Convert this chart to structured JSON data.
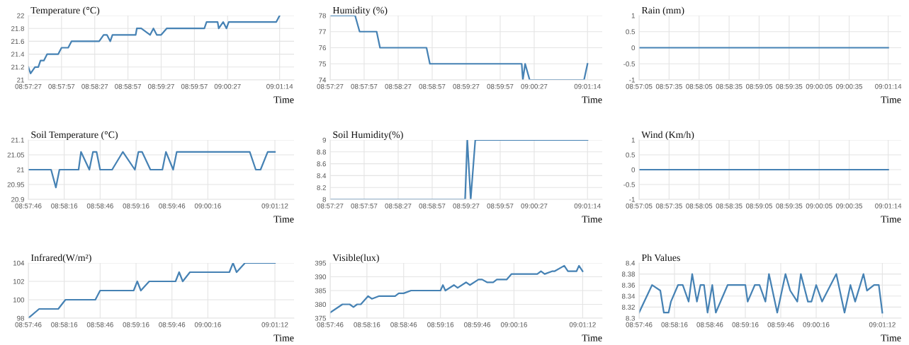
{
  "chart_data": [
    {
      "type": "line",
      "title": "Temperature (°C)",
      "xlabel": "Time",
      "grid": true,
      "x": [
        8.9575,
        8.95806,
        8.95917,
        8.96,
        8.96056,
        8.96139,
        8.96222,
        8.965,
        8.96583,
        8.9675,
        8.96833,
        8.97528,
        8.97639,
        8.97722,
        8.97806,
        8.97861,
        8.98444,
        8.98472,
        8.98583,
        8.98806,
        8.98889,
        8.98972,
        8.99083,
        8.99222,
        9.00167,
        9.00222,
        9.005,
        9.00528,
        9.00639,
        9.00722,
        9.00778,
        9.01972,
        9.02056
      ],
      "series": [
        {
          "color": "#4682b4",
          "values": [
            21.2,
            21.1,
            21.2,
            21.2,
            21.3,
            21.3,
            21.4,
            21.4,
            21.5,
            21.5,
            21.6,
            21.6,
            21.7,
            21.7,
            21.6,
            21.7,
            21.7,
            21.8,
            21.8,
            21.7,
            21.8,
            21.7,
            21.7,
            21.8,
            21.8,
            21.9,
            21.9,
            21.8,
            21.9,
            21.8,
            21.9,
            21.9,
            22
          ]
        }
      ],
      "xlim": [
        8.9575,
        9.02417
      ],
      "ylim": [
        21,
        22
      ],
      "yticks": [
        21,
        21.2,
        21.4,
        21.6,
        21.8,
        22
      ],
      "xticks": [
        {
          "value": 8.9575,
          "label": "08:57:27"
        },
        {
          "value": 8.96583,
          "label": "08:57:57"
        },
        {
          "value": 8.97417,
          "label": "08:58:27"
        },
        {
          "value": 8.9825,
          "label": "08:58:57"
        },
        {
          "value": 8.99083,
          "label": "08:59:27"
        },
        {
          "value": 8.99917,
          "label": "08:59:57"
        },
        {
          "value": 9.0075,
          "label": "09:00:27"
        },
        {
          "value": 9.02056,
          "label": "09:01:14"
        }
      ]
    },
    {
      "type": "line",
      "title": "Humidity (%)",
      "xlabel": "Time",
      "grid": true,
      "x": [
        8.9575,
        8.96361,
        8.96472,
        8.96889,
        8.96972,
        8.98111,
        8.98194,
        9.00444,
        9.00472,
        9.00528,
        9.00639,
        9.01972,
        9.02056
      ],
      "series": [
        {
          "color": "#4682b4",
          "values": [
            78,
            78,
            77,
            77,
            76,
            76,
            75,
            75,
            74,
            75,
            74,
            74,
            75
          ]
        }
      ],
      "xlim": [
        8.9575,
        9.02417
      ],
      "ylim": [
        74,
        78
      ],
      "yticks": [
        74,
        75,
        76,
        77,
        78
      ],
      "xticks": [
        {
          "value": 8.9575,
          "label": "08:57:27"
        },
        {
          "value": 8.96583,
          "label": "08:57:57"
        },
        {
          "value": 8.97417,
          "label": "08:58:27"
        },
        {
          "value": 8.9825,
          "label": "08:58:57"
        },
        {
          "value": 8.99083,
          "label": "08:59:27"
        },
        {
          "value": 8.99917,
          "label": "08:59:57"
        },
        {
          "value": 9.0075,
          "label": "09:00:27"
        },
        {
          "value": 9.02056,
          "label": "09:01:14"
        }
      ]
    },
    {
      "type": "line",
      "title": "Rain (mm)",
      "xlabel": "Time",
      "grid": true,
      "x": [
        8.95139,
        9.02056
      ],
      "series": [
        {
          "color": "#4682b4",
          "values": [
            0,
            0
          ]
        }
      ],
      "xlim": [
        8.95139,
        9.02417
      ],
      "ylim": [
        -1,
        1
      ],
      "yticks": [
        -1,
        -0.5,
        0,
        0.5,
        1
      ],
      "xticks": [
        {
          "value": 8.95139,
          "label": "08:57:05"
        },
        {
          "value": 8.95972,
          "label": "08:57:35"
        },
        {
          "value": 8.96806,
          "label": "08:58:05"
        },
        {
          "value": 8.97639,
          "label": "08:58:35"
        },
        {
          "value": 8.98472,
          "label": "08:59:05"
        },
        {
          "value": 8.99306,
          "label": "08:59:35"
        },
        {
          "value": 9.00139,
          "label": "09:00:05"
        },
        {
          "value": 9.00972,
          "label": "09:00:35"
        },
        {
          "value": 9.02056,
          "label": "09:01:14"
        }
      ]
    },
    {
      "type": "line",
      "title": "Soil Temperature (°C)",
      "xlabel": "Time",
      "grid": true,
      "x": [
        8.96278,
        8.96806,
        8.96917,
        8.97,
        8.97444,
        8.975,
        8.97694,
        8.97778,
        8.97861,
        8.97944,
        8.98222,
        8.98472,
        8.9875,
        8.98833,
        8.98917,
        8.99111,
        8.99389,
        8.99472,
        8.99639,
        8.99722,
        9.01417,
        9.01556,
        9.01667,
        9.01833,
        9.02
      ],
      "series": [
        {
          "color": "#4682b4",
          "values": [
            21,
            21,
            20.94,
            21,
            21,
            21.06,
            21,
            21.06,
            21.06,
            21,
            21,
            21.06,
            21,
            21.06,
            21.06,
            21,
            21,
            21.06,
            21,
            21.06,
            21.06,
            21,
            21,
            21.06,
            21.06
          ]
        }
      ],
      "xlim": [
        8.96278,
        9.02444
      ],
      "ylim": [
        20.9,
        21.1
      ],
      "yticks": [
        20.9,
        20.95,
        21,
        21.05,
        21.1
      ],
      "xticks": [
        {
          "value": 8.96278,
          "label": "08:57:46"
        },
        {
          "value": 8.97111,
          "label": "08:58:16"
        },
        {
          "value": 8.97944,
          "label": "08:58:46"
        },
        {
          "value": 8.98778,
          "label": "08:59:16"
        },
        {
          "value": 8.99611,
          "label": "08:59:46"
        },
        {
          "value": 9.00444,
          "label": "09:00:16"
        },
        {
          "value": 9.02,
          "label": "09:01:12"
        }
      ]
    },
    {
      "type": "line",
      "title": "Soil Humidity(%)",
      "xlabel": "Time",
      "grid": true,
      "x": [
        8.9575,
        8.99056,
        8.99111,
        8.99194,
        8.99306,
        9.02056
      ],
      "series": [
        {
          "color": "#4682b4",
          "values": [
            8,
            8,
            9,
            8,
            9,
            9
          ]
        }
      ],
      "xlim": [
        8.9575,
        9.02417
      ],
      "ylim": [
        8,
        9
      ],
      "yticks": [
        8,
        8.2,
        8.4,
        8.6,
        8.8,
        9
      ],
      "xticks": [
        {
          "value": 8.9575,
          "label": "08:57:27"
        },
        {
          "value": 8.96583,
          "label": "08:57:57"
        },
        {
          "value": 8.97417,
          "label": "08:58:27"
        },
        {
          "value": 8.9825,
          "label": "08:58:57"
        },
        {
          "value": 8.99083,
          "label": "08:59:27"
        },
        {
          "value": 8.99917,
          "label": "08:59:57"
        },
        {
          "value": 9.0075,
          "label": "09:00:27"
        },
        {
          "value": 9.02056,
          "label": "09:01:14"
        }
      ]
    },
    {
      "type": "line",
      "title": "Wind (Km/h)",
      "xlabel": "Time",
      "grid": true,
      "x": [
        8.95139,
        9.02056
      ],
      "series": [
        {
          "color": "#4682b4",
          "values": [
            0,
            0
          ]
        }
      ],
      "xlim": [
        8.95139,
        9.02417
      ],
      "ylim": [
        -1,
        1
      ],
      "yticks": [
        -1,
        -0.5,
        0,
        0.5,
        1
      ],
      "xticks": [
        {
          "value": 8.95139,
          "label": "08:57:05"
        },
        {
          "value": 8.95972,
          "label": "08:57:35"
        },
        {
          "value": 8.96806,
          "label": "08:58:05"
        },
        {
          "value": 8.97639,
          "label": "08:58:35"
        },
        {
          "value": 8.98472,
          "label": "08:59:05"
        },
        {
          "value": 8.99306,
          "label": "08:59:35"
        },
        {
          "value": 9.00139,
          "label": "09:00:05"
        },
        {
          "value": 9.00972,
          "label": "09:00:35"
        },
        {
          "value": 9.02056,
          "label": "09:01:14"
        }
      ]
    },
    {
      "type": "line",
      "title": "Infrared(W/m²)",
      "xlabel": "Time",
      "grid": true,
      "x": [
        8.96278,
        8.96528,
        8.96972,
        8.97139,
        8.97833,
        8.97944,
        8.98722,
        8.98806,
        8.98889,
        8.99083,
        8.99694,
        8.99778,
        8.99861,
        9.00028,
        9.00944,
        9.01028,
        9.01111,
        9.01306,
        9.02
      ],
      "series": [
        {
          "color": "#4682b4",
          "values": [
            98,
            99,
            99,
            100,
            100,
            101,
            101,
            102,
            101,
            102,
            102,
            103,
            102,
            103,
            103,
            104,
            103,
            104,
            104
          ]
        }
      ],
      "xlim": [
        8.96278,
        9.02444
      ],
      "ylim": [
        98,
        104
      ],
      "yticks": [
        98,
        100,
        102,
        104
      ],
      "xticks": [
        {
          "value": 8.96278,
          "label": "08:57:46"
        },
        {
          "value": 8.97111,
          "label": "08:58:16"
        },
        {
          "value": 8.97944,
          "label": "08:58:46"
        },
        {
          "value": 8.98778,
          "label": "08:59:16"
        },
        {
          "value": 8.99611,
          "label": "08:59:46"
        },
        {
          "value": 9.00444,
          "label": "09:00:16"
        },
        {
          "value": 9.02,
          "label": "09:01:12"
        }
      ]
    },
    {
      "type": "line",
      "title": "Visible(lux)",
      "xlabel": "Time",
      "grid": true,
      "x": [
        8.96278,
        8.96556,
        8.96722,
        8.96806,
        8.96889,
        8.96972,
        8.97139,
        8.97222,
        8.97389,
        8.9775,
        8.97833,
        8.97944,
        8.98111,
        8.98778,
        8.98833,
        8.98889,
        8.99083,
        8.99167,
        8.99361,
        8.99444,
        8.99639,
        8.99722,
        8.99833,
        8.99972,
        9.00056,
        9.00278,
        9.00389,
        9.00972,
        9.01056,
        9.01139,
        9.01306,
        9.01361,
        9.01583,
        9.01667,
        9.01861,
        9.01917,
        9.02
      ],
      "series": [
        {
          "color": "#4682b4",
          "values": [
            377,
            380,
            380,
            379,
            380,
            380,
            383,
            382,
            383,
            383,
            384,
            384,
            385,
            385,
            387,
            385,
            387,
            386,
            388,
            387,
            389,
            389,
            388,
            388,
            389,
            389,
            391,
            391,
            392,
            391,
            392,
            392,
            394,
            392,
            392,
            394,
            392
          ]
        }
      ],
      "xlim": [
        8.96278,
        9.02444
      ],
      "ylim": [
        375,
        395
      ],
      "yticks": [
        375,
        380,
        385,
        390,
        395
      ],
      "xticks": [
        {
          "value": 8.96278,
          "label": "08:57:46"
        },
        {
          "value": 8.97111,
          "label": "08:58:16"
        },
        {
          "value": 8.97944,
          "label": "08:58:46"
        },
        {
          "value": 8.98778,
          "label": "08:59:16"
        },
        {
          "value": 8.99611,
          "label": "08:59:46"
        },
        {
          "value": 9.00444,
          "label": "09:00:16"
        },
        {
          "value": 9.02,
          "label": "09:01:12"
        }
      ]
    },
    {
      "type": "line",
      "title": "Ph Values",
      "xlabel": "Time",
      "grid": true,
      "x": [
        8.96278,
        8.96583,
        8.96778,
        8.96861,
        8.96972,
        8.97028,
        8.97194,
        8.97306,
        8.97444,
        8.97528,
        8.97639,
        8.97722,
        8.97806,
        8.97889,
        8.98,
        8.98083,
        8.98361,
        8.98778,
        8.98833,
        8.99,
        8.99111,
        8.9925,
        8.99333,
        8.99528,
        8.99722,
        8.99833,
        9.0,
        9.00083,
        9.0025,
        9.00333,
        9.00444,
        9.00583,
        9.00917,
        9.01111,
        9.0125,
        9.01361,
        9.01556,
        9.01639,
        9.01806,
        9.01917,
        9.02
      ],
      "series": [
        {
          "color": "#4682b4",
          "values": [
            8.31,
            8.36,
            8.35,
            8.31,
            8.31,
            8.33,
            8.36,
            8.36,
            8.33,
            8.38,
            8.33,
            8.36,
            8.36,
            8.31,
            8.36,
            8.31,
            8.36,
            8.36,
            8.33,
            8.36,
            8.36,
            8.33,
            8.38,
            8.31,
            8.38,
            8.35,
            8.33,
            8.38,
            8.33,
            8.33,
            8.36,
            8.33,
            8.38,
            8.31,
            8.36,
            8.33,
            8.38,
            8.35,
            8.36,
            8.36,
            8.31
          ]
        }
      ],
      "xlim": [
        8.96278,
        9.02444
      ],
      "ylim": [
        8.3,
        8.4
      ],
      "yticks": [
        8.3,
        8.32,
        8.34,
        8.36,
        8.38,
        8.4
      ],
      "xticks": [
        {
          "value": 8.96278,
          "label": "08:57:46"
        },
        {
          "value": 8.97111,
          "label": "08:58:16"
        },
        {
          "value": 8.97944,
          "label": "08:58:46"
        },
        {
          "value": 8.98778,
          "label": "08:59:16"
        },
        {
          "value": 8.99611,
          "label": "08:59:46"
        },
        {
          "value": 9.00444,
          "label": "09:00:16"
        },
        {
          "value": 9.02,
          "label": "09:01:12"
        }
      ]
    }
  ]
}
